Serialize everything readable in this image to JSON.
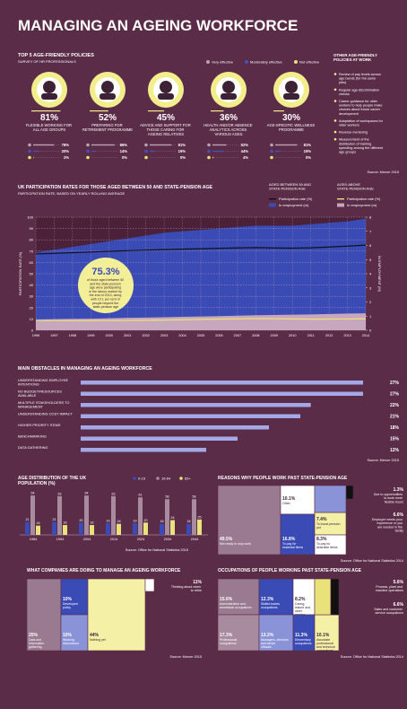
{
  "title": "MANAGING AN AGEING WORKFORCE",
  "chart_data": [
    {
      "type": "stat",
      "title": "TOP 5 AGE-FRIENDLY POLICIES",
      "subtitle": "SURVEY OF HR PROFESSIONALS",
      "categories": [
        "FLEXIBLE WORKING FOR ALL AGE GROUPS",
        "PREPARING FOR RETIREMENT PROGRAMME",
        "ADVICE AND SUPPORT FOR THOSE CARING FOR AGEING RELATIVES",
        "HEALTH AND/OR ABSENCE ANALYTICS ACROSS VARIOUS AGES",
        "AGE-SPECIFIC WELLNESS PROGRAMME"
      ],
      "values": [
        81,
        52,
        45,
        36,
        30
      ],
      "value_labels": [
        "81%",
        "52%",
        "45%",
        "36%",
        "30%"
      ],
      "series": [
        {
          "name": "Very effective",
          "color": "#b9a2b4",
          "values": [
            78,
            86,
            81,
            52,
            81
          ],
          "value_labels": [
            "78%",
            "86%",
            "81%",
            "52%",
            "81%"
          ]
        },
        {
          "name": "Moderately effective",
          "color": "#4452b8",
          "values": [
            20,
            14,
            19,
            44,
            19
          ],
          "value_labels": [
            "20%",
            "14%",
            "19%",
            "44%",
            "19%"
          ]
        },
        {
          "name": "Not effective",
          "color": "#e9e27a",
          "values": [
            2,
            0,
            0,
            4,
            0
          ],
          "value_labels": [
            "2%",
            "0%",
            "0%",
            "4%",
            "0%"
          ]
        }
      ],
      "side_title": "OTHER AGE-FRIENDLY POLICIES AT WORK",
      "side_items": [
        "Review of pay levels across age bands (for the same jobs)",
        "Regular age-discrimination checks",
        "Career guidance for older workers to help people make choices about future career development",
        "Adaptation of workspaces for older workers",
        "Reverse mentoring",
        "Measurement of the distribution of training spending among the different age groups"
      ],
      "source": "Source: Mercer 2015"
    },
    {
      "type": "combo",
      "title": "UK PARTICIPATION RATES FOR THOSE AGED BETWEEN 50 AND STATE-PENSION AGE",
      "subtitle": "PARTICIPATION RATE, BASED ON YEARLY ROLLING AVERAGE",
      "ylabel": "PARTICIPATION RATE (%)",
      "y2label": "IN EMPLOYMENT (M)",
      "x": [
        1996,
        1997,
        1998,
        1999,
        2000,
        2001,
        2002,
        2003,
        2004,
        2005,
        2006,
        2007,
        2008,
        2009,
        2010,
        2011,
        2012,
        2013,
        2014
      ],
      "xticks": [
        1996,
        1997,
        1998,
        1999,
        2000,
        2001,
        2002,
        2003,
        2004,
        2005,
        2006,
        2007,
        2008,
        2009,
        2010,
        2011,
        2012,
        2013,
        2014
      ],
      "xlim": [
        1996,
        2014
      ],
      "ylim": [
        0,
        100
      ],
      "yticks": [
        0,
        10,
        20,
        30,
        40,
        50,
        60,
        70,
        80,
        90,
        100
      ],
      "y2lim": [
        0,
        8
      ],
      "y2ticks": [
        0,
        1,
        2,
        3,
        4,
        5,
        6,
        7,
        8
      ],
      "grid": true,
      "groups": [
        {
          "name": "AGED BETWEEN 50 AND STATE-PENSION AGE",
          "series": [
            {
              "name": "Participation rate (%)",
              "kind": "line",
              "color": "#111111",
              "values": [
                67.5,
                68.0,
                68.6,
                69.2,
                69.8,
                70.4,
                70.9,
                71.3,
                71.7,
                72.1,
                72.5,
                72.8,
                73.1,
                72.8,
                72.6,
                72.9,
                73.6,
                74.4,
                75.3
              ]
            },
            {
              "name": "In employment (m)",
              "kind": "area",
              "axis": "y2",
              "color": "#3b4bb5",
              "values": [
                5.5,
                5.7,
                5.9,
                6.1,
                6.3,
                6.5,
                6.7,
                6.9,
                7.0,
                7.1,
                7.2,
                7.3,
                7.4,
                7.4,
                7.4,
                7.5,
                7.6,
                7.7,
                7.9
              ]
            }
          ]
        },
        {
          "name": "AGED ABOVE STATE-PENSION AGE",
          "series": [
            {
              "name": "Participation rate (%)",
              "kind": "line",
              "color": "#e9e27a",
              "values": [
                8.7,
                8.6,
                8.5,
                8.5,
                8.6,
                8.6,
                8.8,
                9.0,
                9.3,
                9.6,
                9.9,
                10.1,
                10.3,
                10.2,
                10.0,
                9.8,
                9.9,
                10.0,
                10.1
              ]
            },
            {
              "name": "In employment (m)",
              "kind": "area",
              "axis": "y2",
              "color": "#c7a7bd",
              "values": [
                0.75,
                0.78,
                0.8,
                0.82,
                0.85,
                0.88,
                0.9,
                0.92,
                0.95,
                0.98,
                1.0,
                1.03,
                1.06,
                1.08,
                1.1,
                1.12,
                1.15,
                1.18,
                1.2
              ]
            }
          ]
        }
      ],
      "annotation": {
        "title": "75.3%",
        "text": "of those aged between 50 and the state-pension age were participating in the labour market by the end of 2014, along with 10.1 per cent of people beyond the state-pension age"
      }
    },
    {
      "type": "bar",
      "title": "MAIN OBSTACLES IN MANAGING AN AGEING WORKFORCE",
      "categories": [
        "UNDERSTANDING EMPLOYEE INTENTIONS",
        "NO BUDGET/RESOURCES AVAILABLE",
        "MULTIPLE STAKEHOLDERS TO MANAGEMENT",
        "UNDERSTANDING COST IMPACT",
        "HIGHER PRIORITY ITEMS",
        "BENCHMARKING",
        "DATA GATHERING"
      ],
      "values": [
        27,
        27,
        22,
        21,
        18,
        15,
        12
      ],
      "value_labels": [
        "27%",
        "27%",
        "22%",
        "21%",
        "18%",
        "15%",
        "12%"
      ],
      "xlim": [
        0,
        27
      ],
      "color": "#a5a8e6",
      "source": "Source: Mercer 2015"
    },
    {
      "type": "grouped",
      "title": "AGE DISTRIBUTION OF THE UK POPULATION (%)",
      "categories": [
        "1984",
        "1994",
        "2004",
        "2014",
        "2024",
        "2034",
        "2044"
      ],
      "ylim": [
        0,
        70
      ],
      "series": [
        {
          "name": "0-15",
          "color": "#3b4bb5",
          "values": [
            21,
            21,
            20,
            19,
            19,
            18,
            18
          ]
        },
        {
          "name": "16-64",
          "color": "#a98ba0",
          "values": [
            64,
            63,
            64,
            63,
            61,
            58,
            58
          ]
        },
        {
          "name": "65+",
          "color": "#e9e27a",
          "values": [
            15,
            16,
            16,
            18,
            20,
            24,
            25
          ]
        }
      ],
      "source": "Source: Office for National Statistics 2015"
    },
    {
      "type": "treemap",
      "title": "REASONS WHY PEOPLE WORK PAST STATE-PENSION AGE",
      "categories": [
        "Not ready to stop work",
        "Other",
        "To pay for essential items",
        "To boost pension pot",
        "To pay for desirable items",
        "Due to opportunities to work more flexible hours",
        "Employer needs your experience or you are needed in the family"
      ],
      "values": [
        49.5,
        10.1,
        16.8,
        7.4,
        8.3,
        1.3,
        6.6
      ],
      "value_labels": [
        "49.5%",
        "10.1%",
        "16.8%",
        "7.4%",
        "8.3%",
        "1.3%",
        "6.6%"
      ],
      "colors": [
        "#9a7a90",
        "#ffffff",
        "#3b4bb5",
        "#f4f0a6",
        "#ffffff",
        "#111111",
        "#8b93d8"
      ],
      "source": "Source: Office for National Statistics 2014"
    },
    {
      "type": "treemap",
      "title": "WHAT COMPANIES ARE DOING TO MANAGE AN AGEING WORKFORCE",
      "categories": [
        "Data and information gathering",
        "Developed policy",
        "Working discussions",
        "Nothing yet",
        "Thinking about when to retire"
      ],
      "values": [
        25,
        10,
        10,
        44,
        11
      ],
      "value_labels": [
        "25%",
        "10%",
        "10%",
        "44%",
        "11%"
      ],
      "colors": [
        "#9a7a90",
        "#3b4bb5",
        "#8b93d8",
        "#f4f0a6",
        "#ffffff"
      ],
      "source": "Source: Mercer 2015"
    },
    {
      "type": "treemap",
      "title": "OCCUPATIONS OF PEOPLE WORKING PAST STATE-PENSION AGE",
      "categories": [
        "Administrative and secretarial occupations",
        "Professional occupations",
        "Skilled trades occupations",
        "Managers, directors and senior officials",
        "Caring, leisure and other service occupations",
        "Elementary occupations",
        "Associate professional and technical occupations",
        "Process, plant and machine operatives",
        "Sales and customer service occupations"
      ],
      "values": [
        15.6,
        17.3,
        12.3,
        13.2,
        8.2,
        11.3,
        10.1,
        5.6,
        6.6
      ],
      "value_labels": [
        "15.6%",
        "17.3%",
        "12.3%",
        "13.2%",
        "8.2%",
        "11.3%",
        "10.1%",
        "5.6%",
        "6.6%"
      ],
      "colors": [
        "#9a7a90",
        "#a98ba0",
        "#3b4bb5",
        "#8b93d8",
        "#ffffff",
        "#3b4bb5",
        "#f4f0a6",
        "#e9e27a",
        "#111111"
      ],
      "source": "Source: Office for National Statistics 2014"
    }
  ]
}
